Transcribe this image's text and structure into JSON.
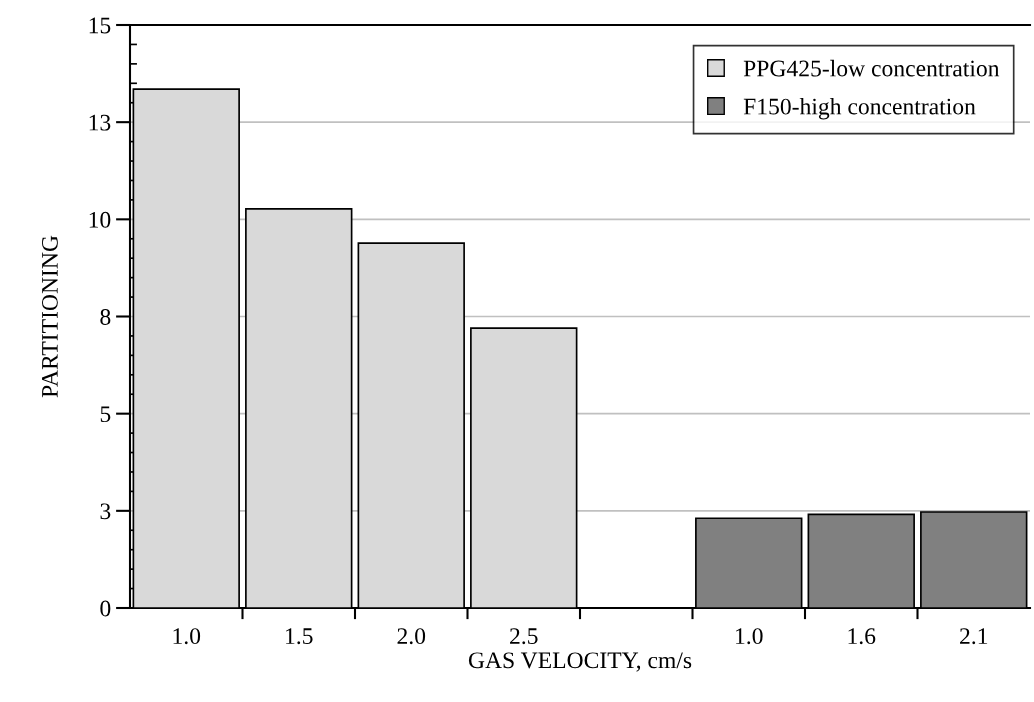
{
  "chart_data": {
    "type": "bar",
    "xlabel": "GAS VELOCITY, cm/s",
    "ylabel": "PARTITIONING",
    "categories": [
      "1.0",
      "1.5",
      "2.0",
      "2.5",
      null,
      "1.0",
      "1.6",
      "2.1"
    ],
    "series": [
      {
        "name": "PPG425-low concentration",
        "color": "#d9d9d9",
        "values": [
          13.35,
          10.27,
          9.39,
          7.2,
          null,
          null,
          null,
          null
        ]
      },
      {
        "name": "F150-high concentration",
        "color": "#808080",
        "values": [
          null,
          null,
          null,
          null,
          null,
          2.31,
          2.41,
          2.47
        ]
      }
    ],
    "ylim": [
      0,
      15
    ],
    "yticks": [
      0,
      {
        "value": 2.5,
        "label": "3"
      },
      5,
      {
        "value": 7.5,
        "label": "8"
      },
      10,
      {
        "value": 12.5,
        "label": "13"
      },
      15
    ],
    "grid": "y",
    "legend": "top right"
  }
}
